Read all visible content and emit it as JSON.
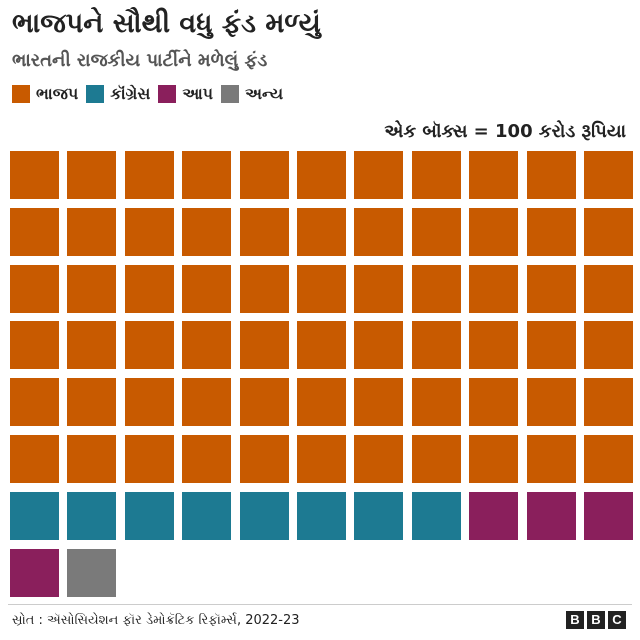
{
  "header": {
    "title": "ભાજપને સૌથી વધુ ફંડ મળ્યું",
    "subtitle": "ભારતની રાજકીય પાર્ટીને મળેલું ફંડ",
    "unit_note": "એક બૉક્સ = 100 કરોડ રૂપિયા"
  },
  "legend": [
    {
      "label": "ભાજપ",
      "color": "#c85a00"
    },
    {
      "label": "કૉંગ્રેસ",
      "color": "#1d7a92"
    },
    {
      "label": "આપ",
      "color": "#8a1f5c"
    },
    {
      "label": "અન્ય",
      "color": "#7a7a7a"
    }
  ],
  "footer": {
    "source": "સ્રોત : ઍસોસિયેશન ફૉર ડેમોક્રૅટિક રિફૉર્મ્સ, 2022-23",
    "logo_letters": [
      "B",
      "B",
      "C"
    ]
  },
  "chart_data": {
    "type": "waffle",
    "columns": 11,
    "unit": "100 કરોડ રૂપિયા",
    "series": [
      {
        "name": "ભાજપ",
        "values": [
          66
        ],
        "color": "#c85a00"
      },
      {
        "name": "કૉંગ્રેસ",
        "values": [
          8
        ],
        "color": "#1d7a92"
      },
      {
        "name": "આપ",
        "values": [
          4
        ],
        "color": "#8a1f5c"
      },
      {
        "name": "અન્ય",
        "values": [
          1
        ],
        "color": "#7a7a7a"
      }
    ]
  }
}
